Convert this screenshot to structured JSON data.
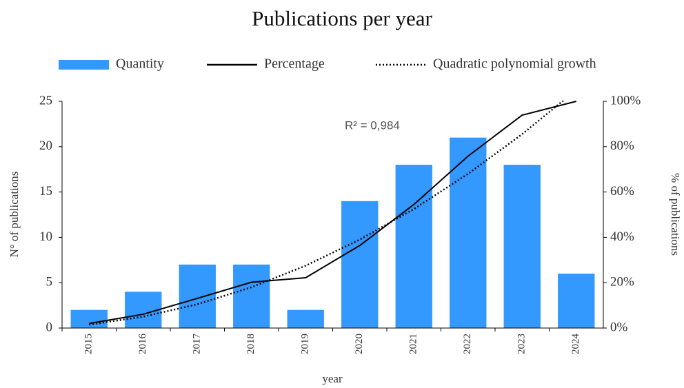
{
  "chart_data": {
    "type": "bar",
    "title": "Publications  per year",
    "xlabel": "year",
    "ylabel": "N° of publications",
    "y2label": "% of publications",
    "annotation": "R² = 0,984",
    "categories": [
      "2015",
      "2016",
      "2017",
      "2018",
      "2019",
      "2020",
      "2021",
      "2022",
      "2023",
      "2024"
    ],
    "series": [
      {
        "name": "Quantity",
        "type": "bar",
        "color": "#3399ff",
        "values": [
          2,
          4,
          7,
          7,
          2,
          14,
          18,
          21,
          18,
          6
        ]
      },
      {
        "name": "Percentage",
        "type": "line",
        "axis": "y2",
        "color": "#000000",
        "values": [
          2.0,
          6.1,
          13.1,
          20.2,
          22.2,
          36.4,
          54.5,
          75.8,
          93.9,
          100
        ]
      },
      {
        "name": "Quadratic polynomial growth",
        "type": "dotted",
        "axis": "y2",
        "color": "#000000",
        "values": [
          1.5,
          5,
          10.5,
          18,
          27.5,
          39,
          52.5,
          68,
          85.5,
          105
        ]
      }
    ],
    "ylim": [
      0,
      25
    ],
    "yticks": [
      0,
      5,
      10,
      15,
      20,
      25
    ],
    "y2lim": [
      0,
      100
    ],
    "y2ticks": [
      {
        "value": 0,
        "label": "0%"
      },
      {
        "value": 20,
        "label": "20%"
      },
      {
        "value": 40,
        "label": "40%"
      },
      {
        "value": 60,
        "label": "60%"
      },
      {
        "value": 80,
        "label": "80%"
      },
      {
        "value": 100,
        "label": "100%"
      }
    ],
    "legend": "top"
  }
}
